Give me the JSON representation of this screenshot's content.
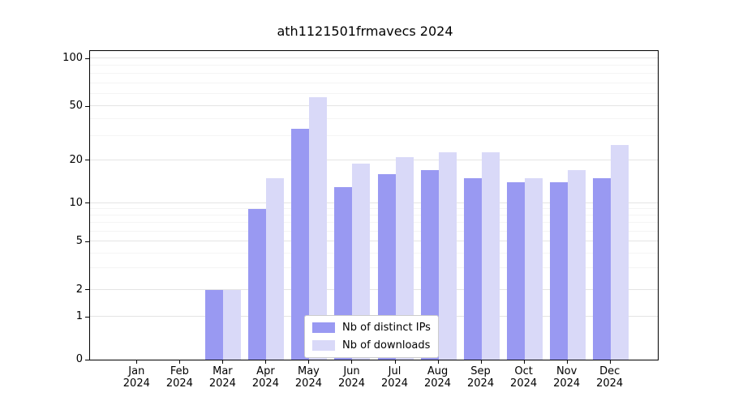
{
  "title": "ath1121501frmavecs 2024",
  "chart_data": {
    "type": "bar",
    "title": "ath1121501frmavecs 2024",
    "scale": "symlog",
    "grid": true,
    "legend_position": "lower center",
    "ylim": [
      0,
      100
    ],
    "yticks": [
      0,
      1,
      2,
      5,
      10,
      20,
      50,
      100
    ],
    "categories": [
      {
        "month": "Jan",
        "year": "2024"
      },
      {
        "month": "Feb",
        "year": "2024"
      },
      {
        "month": "Mar",
        "year": "2024"
      },
      {
        "month": "Apr",
        "year": "2024"
      },
      {
        "month": "May",
        "year": "2024"
      },
      {
        "month": "Jun",
        "year": "2024"
      },
      {
        "month": "Jul",
        "year": "2024"
      },
      {
        "month": "Aug",
        "year": "2024"
      },
      {
        "month": "Sep",
        "year": "2024"
      },
      {
        "month": "Oct",
        "year": "2024"
      },
      {
        "month": "Nov",
        "year": "2024"
      },
      {
        "month": "Dec",
        "year": "2024"
      }
    ],
    "series": [
      {
        "name": "Nb of distinct IPs",
        "color": "#9999f2",
        "values": [
          0,
          0,
          2,
          9,
          34,
          13,
          16,
          17,
          15,
          14,
          14,
          15
        ]
      },
      {
        "name": "Nb of downloads",
        "color": "#d9d9f8",
        "values": [
          0,
          0,
          2,
          15,
          57,
          19,
          21,
          23,
          23,
          15,
          17,
          26
        ]
      }
    ]
  }
}
